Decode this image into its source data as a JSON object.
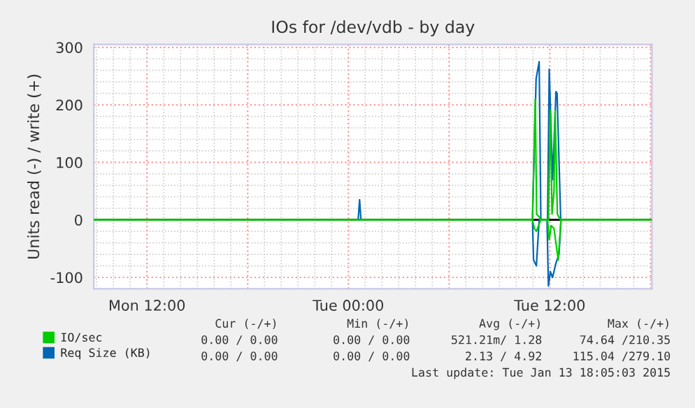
{
  "chart_data": {
    "type": "line",
    "title": "IOs for /dev/vdb - by day",
    "ylabel": "Units read (-) / write (+)",
    "series": [
      {
        "name": "IO/sec",
        "color": "#00cc00",
        "x": [
          "2015-01-12T08:50",
          "2015-01-13T00:30",
          "2015-01-13T00:40",
          "2015-01-13T00:50",
          "2015-01-13T10:58",
          "2015-01-13T11:08",
          "2015-01-13T11:13",
          "2015-01-13T11:22",
          "2015-01-13T11:28",
          "2015-01-13T11:55",
          "2015-01-13T12:02",
          "2015-01-13T12:08",
          "2015-01-13T12:15",
          "2015-01-13T12:19",
          "2015-01-13T12:27",
          "2015-01-13T12:38",
          "2015-01-13T18:05"
        ],
        "values": [
          0,
          0,
          0,
          0,
          0,
          210,
          10,
          5,
          0,
          0,
          190,
          10,
          50,
          190,
          10,
          0,
          0
        ]
      },
      {
        "color": "#00cc00",
        "x": [
          "2015-01-12T08:50",
          "2015-01-13T10:58",
          "2015-01-13T11:05",
          "2015-01-13T11:12",
          "2015-01-13T11:28",
          "2015-01-13T11:52",
          "2015-01-13T11:58",
          "2015-01-13T12:05",
          "2015-01-13T12:15",
          "2015-01-13T12:30",
          "2015-01-13T12:40",
          "2015-01-13T18:05"
        ],
        "values": [
          0,
          0,
          -15,
          -20,
          0,
          0,
          -35,
          -10,
          -15,
          -70,
          0,
          0
        ]
      },
      {
        "name": "Req Size (KB)",
        "color": "#0066b3",
        "x": [
          "2015-01-13T11:22",
          "2015-01-13T11:12",
          "2015-01-13T11:02",
          "2015-01-13T10:58",
          "2015-01-13T11:11",
          "2015-01-13T11:22",
          "2015-01-13T11:28"
        ],
        "values": [
          0,
          -80,
          -70,
          0,
          245,
          275,
          0
        ]
      },
      {
        "color": "#0066b3",
        "x": [
          "2015-01-13T00:35",
          "2015-01-13T00:40",
          "2015-01-13T00:45"
        ],
        "values": [
          0,
          35,
          0
        ]
      },
      {
        "color": "#0066b3",
        "x": [
          "2015-01-13T12:40",
          "2015-01-13T12:33",
          "2015-01-13T12:22",
          "2015-01-13T12:10",
          "2015-01-13T12:02",
          "2015-01-13T11:55",
          "2015-01-13T11:50",
          "2015-01-13T11:52",
          "2015-01-13T11:58",
          "2015-01-13T12:10",
          "2015-01-13T12:22",
          "2015-01-13T12:26",
          "2015-01-13T12:39"
        ],
        "values": [
          0,
          -60,
          -75,
          -100,
          -90,
          -115,
          0,
          0,
          262,
          70,
          223,
          220,
          0
        ]
      }
    ],
    "xlim": [
      "2015-01-12T08:50",
      "2015-01-13T18:05"
    ],
    "xticks": [
      {
        "value": "2015-01-12T12:00",
        "label": "Mon 12:00"
      },
      {
        "value": "2015-01-12T18:00",
        "label": null
      },
      {
        "value": "2015-01-13T00:00",
        "label": "Tue 00:00"
      },
      {
        "value": "2015-01-13T06:00",
        "label": null
      },
      {
        "value": "2015-01-13T12:00",
        "label": "Tue 12:00"
      },
      {
        "value": "2015-01-13T18:00",
        "label": null
      }
    ],
    "ylim": [
      -120,
      305
    ],
    "yticks": [
      -100,
      0,
      100,
      200,
      300
    ],
    "ref_lines": [
      {
        "axis": "y",
        "value": 0,
        "color": "#000000"
      }
    ],
    "grid": true,
    "legend": "bottom left",
    "annotations": [
      "Cur (-/+)",
      "Min (-/+)",
      "Avg (-/+)",
      "Max (-/+)",
      "0.00 / 0.00",
      "0.00 / 0.00",
      "521.21m/ 1.28",
      "74.64 /210.35",
      "0.00 / 0.00",
      "0.00 / 0.00",
      "2.13 / 4.92",
      "115.04 /279.10",
      "Last update: Tue Jan 13 18:05:03 2015"
    ]
  }
}
